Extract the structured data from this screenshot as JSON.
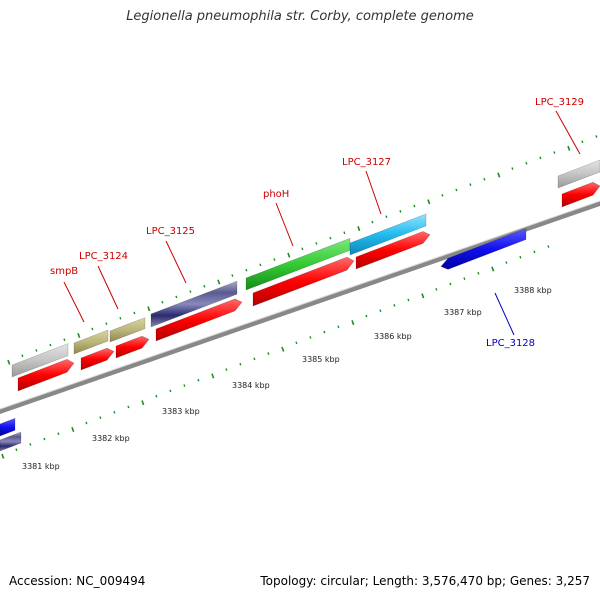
{
  "title": "Legionella pneumophila str. Corby, complete genome",
  "footer": {
    "accession": "Accession: NC_009494",
    "stats": "Topology: circular; Length: 3,576,470 bp; Genes: 3,257"
  },
  "scale_labels": [
    "3381 kbp",
    "3382 kbp",
    "3383 kbp",
    "3384 kbp",
    "3385 kbp",
    "3386 kbp",
    "3387 kbp",
    "3388 kbp"
  ],
  "gene_labels": [
    {
      "text": "smpB",
      "color": "#cc0000"
    },
    {
      "text": "LPC_3124",
      "color": "#cc0000"
    },
    {
      "text": "LPC_3125",
      "color": "#cc0000"
    },
    {
      "text": "phoH",
      "color": "#cc0000"
    },
    {
      "text": "LPC_3127",
      "color": "#cc0000"
    },
    {
      "text": "LPC_3128",
      "color": "#0000cc"
    },
    {
      "text": "LPC_3129",
      "color": "#cc0000"
    }
  ],
  "colors": {
    "backbone": "#888888",
    "forward_cds": "#ff0000",
    "reverse_cds": "#0000ee",
    "tick": "#228b22"
  }
}
